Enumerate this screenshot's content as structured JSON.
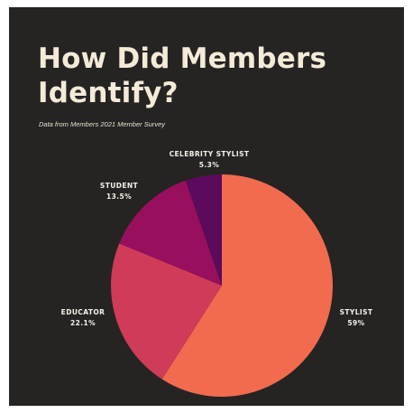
{
  "chart_data": {
    "type": "pie",
    "title": "How Did Members Identify?",
    "subtitle": "Data from Members 2021 Member Survey",
    "slices": [
      {
        "label": "STYLIST",
        "value": 59,
        "display": "59%",
        "color": "#f26b4e"
      },
      {
        "label": "EDUCATOR",
        "value": 22.1,
        "display": "22.1%",
        "color": "#cf3b58"
      },
      {
        "label": "STUDENT",
        "value": 13.5,
        "display": "13.5%",
        "color": "#980f5e"
      },
      {
        "label": "CELEBRITY STYLIST",
        "value": 5.3,
        "display": "5.3%",
        "color": "#5b0a5c"
      }
    ],
    "start_angle_deg": 0,
    "direction": "clockwise",
    "legend": "none"
  },
  "colors": {
    "background": "#262323",
    "title": "#f3ead8",
    "label": "#f5f0e6"
  }
}
